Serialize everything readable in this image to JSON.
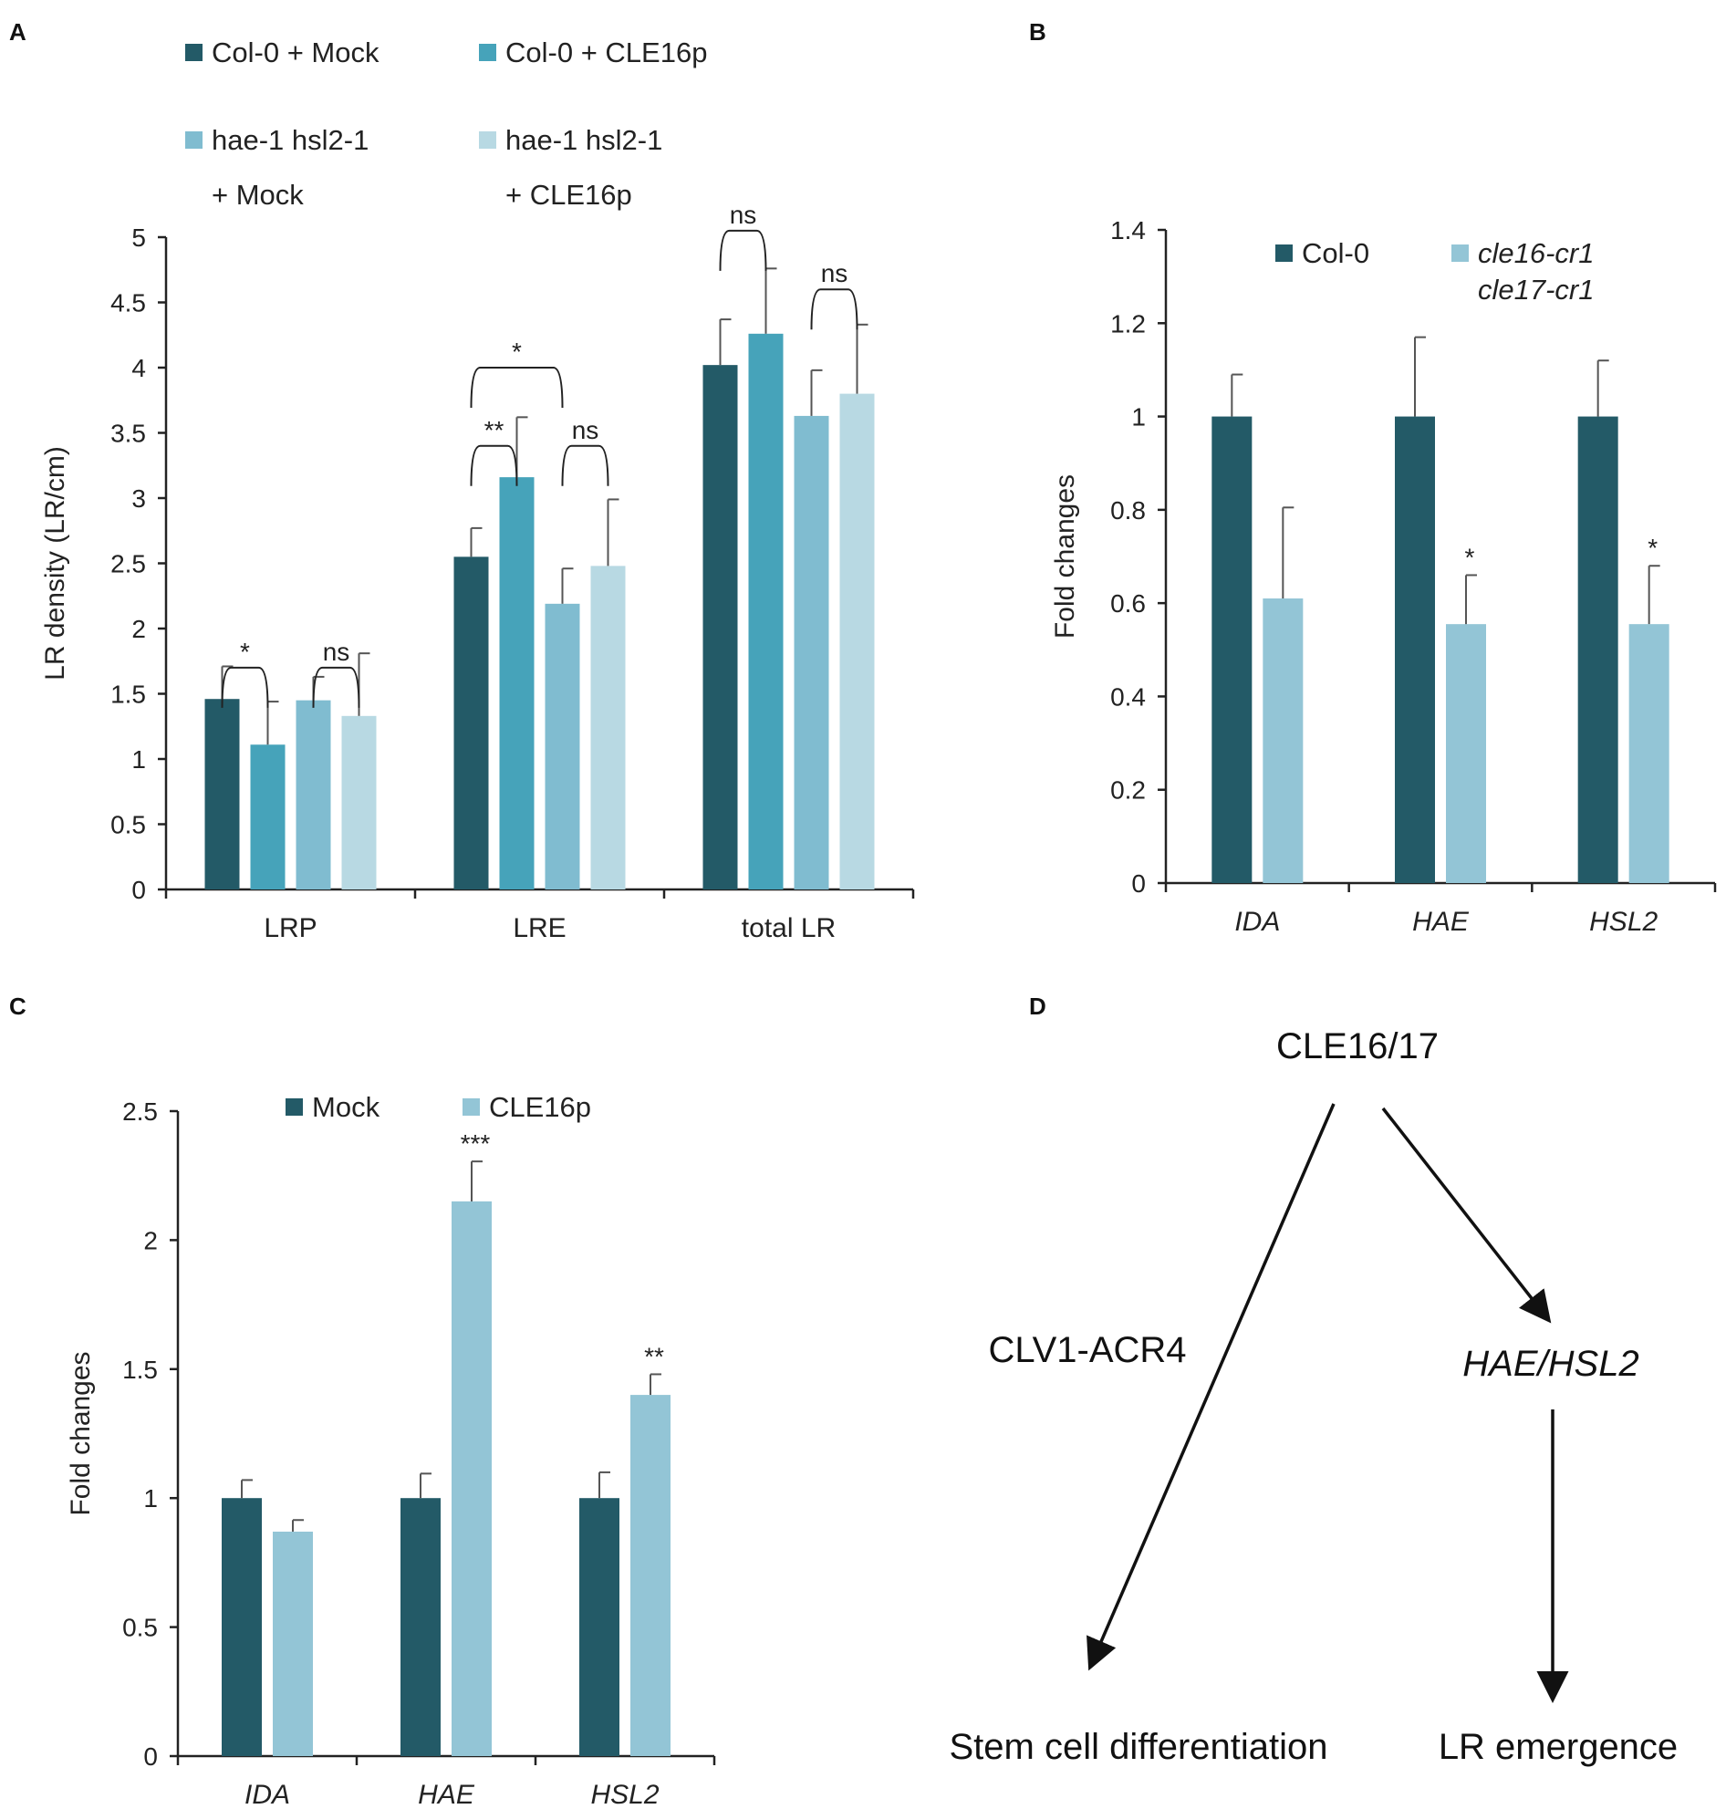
{
  "colors": {
    "dark": "#235a67",
    "mid": "#46a3ba",
    "light": "#80bcd0",
    "lightest": "#b8d9e3",
    "b_light": "#93c5d6"
  },
  "panels": {
    "a_letter": "A",
    "b_letter": "B",
    "c_letter": "C",
    "d_letter": "D"
  },
  "chart_data": [
    {
      "id": "A",
      "type": "bar",
      "ylabel": "LR density (LR/cm)",
      "ylim": [
        0,
        5
      ],
      "yticks": [
        "0",
        "0.5",
        "1",
        "1.5",
        "2",
        "2.5",
        "3",
        "3.5",
        "4",
        "4.5",
        "5"
      ],
      "categories": [
        "LRP",
        "LRE",
        "total LR"
      ],
      "legend": [
        {
          "line1": "Col-0 + Mock",
          "line2": ""
        },
        {
          "line1": "Col-0 + CLE16p",
          "line2": ""
        },
        {
          "line1": "hae-1 hsl2-1",
          "line2": "+ Mock"
        },
        {
          "line1": "hae-1 hsl2-1",
          "line2": "+ CLE16p"
        }
      ],
      "series": [
        {
          "name": "Col-0 + Mock",
          "values": [
            1.46,
            2.55,
            4.02
          ],
          "errors": [
            0.25,
            0.22,
            0.35
          ]
        },
        {
          "name": "Col-0 + CLE16p",
          "values": [
            1.11,
            3.16,
            4.26
          ],
          "errors": [
            0.33,
            0.46,
            0.5
          ]
        },
        {
          "name": "hae-1 hsl2-1 + Mock",
          "values": [
            1.45,
            2.19,
            3.63
          ],
          "errors": [
            0.18,
            0.27,
            0.35
          ]
        },
        {
          "name": "hae-1 hsl2-1 + CLE16p",
          "values": [
            1.33,
            2.48,
            3.8
          ],
          "errors": [
            0.48,
            0.51,
            0.53
          ]
        }
      ],
      "significance": [
        {
          "category": 0,
          "from": 0,
          "to": 1,
          "label": "*",
          "level": 1.7
        },
        {
          "category": 0,
          "from": 2,
          "to": 3,
          "label": "ns",
          "level": 1.7
        },
        {
          "category": 1,
          "from": 0,
          "to": 1,
          "label": "**",
          "level": 3.4
        },
        {
          "category": 1,
          "from": 0,
          "to": 2,
          "label": "*",
          "level": 4.0
        },
        {
          "category": 1,
          "from": 2,
          "to": 3,
          "label": "ns",
          "level": 3.4
        },
        {
          "category": 2,
          "from": 0,
          "to": 1,
          "label": "ns",
          "level": 5.05
        },
        {
          "category": 2,
          "from": 2,
          "to": 3,
          "label": "ns",
          "level": 4.6
        }
      ]
    },
    {
      "id": "B",
      "type": "bar",
      "ylabel": "Fold changes",
      "ylim": [
        0,
        1.4
      ],
      "yticks": [
        "0",
        "0.2",
        "0.4",
        "0.6",
        "0.8",
        "1",
        "1.2",
        "1.4"
      ],
      "categories": [
        "IDA",
        "HAE",
        "HSL2"
      ],
      "legend": [
        {
          "line1": "Col-0",
          "line2": ""
        },
        {
          "line1": "cle16-cr1",
          "line2": "cle17-cr1"
        }
      ],
      "series": [
        {
          "name": "Col-0",
          "values": [
            1.0,
            1.0,
            1.0
          ],
          "errors": [
            0.09,
            0.17,
            0.12
          ]
        },
        {
          "name": "cle16-cr1 cle17-cr1",
          "values": [
            0.61,
            0.555,
            0.555
          ],
          "errors": [
            0.195,
            0.105,
            0.125
          ],
          "marks": [
            "",
            "*",
            "*"
          ]
        }
      ]
    },
    {
      "id": "C",
      "type": "bar",
      "ylabel": "Fold changes",
      "ylim": [
        0,
        2.5
      ],
      "yticks": [
        "0",
        "0.5",
        "1",
        "1.5",
        "2",
        "2.5"
      ],
      "categories": [
        "IDA",
        "HAE",
        "HSL2"
      ],
      "legend": [
        {
          "line1": "Mock",
          "line2": ""
        },
        {
          "line1": "CLE16p",
          "line2": ""
        }
      ],
      "series": [
        {
          "name": "Mock",
          "values": [
            1.0,
            1.0,
            1.0
          ],
          "errors": [
            0.07,
            0.095,
            0.1
          ]
        },
        {
          "name": "CLE16p",
          "values": [
            0.87,
            2.15,
            1.4
          ],
          "errors": [
            0.045,
            0.155,
            0.08
          ],
          "marks": [
            "",
            "***",
            "**"
          ]
        }
      ]
    }
  ],
  "diagram": {
    "top": "CLE16/17",
    "left_label": "CLV1-ACR4",
    "right_label": "HAE/HSL2",
    "bottom_left": "Stem cell differentiation",
    "bottom_right": "LR emergence"
  }
}
